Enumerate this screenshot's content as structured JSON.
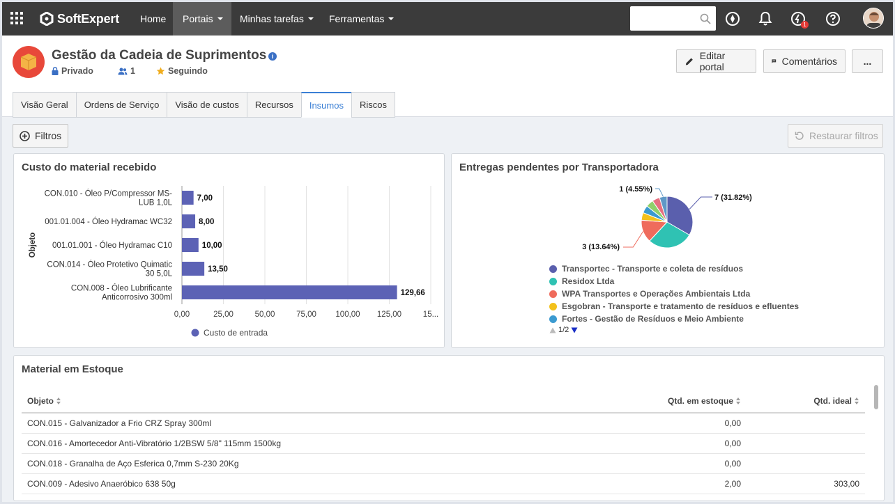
{
  "topbar": {
    "brand": "SoftExpert",
    "nav": [
      {
        "label": "Home"
      },
      {
        "label": "Portais"
      },
      {
        "label": "Minhas tarefas"
      },
      {
        "label": "Ferramentas"
      }
    ],
    "search_placeholder": "",
    "notification_badge": "1"
  },
  "portal": {
    "title": "Gestão da Cadeia de Suprimentos",
    "privacy": "Privado",
    "members": "1",
    "following": "Seguindo",
    "edit_label": "Editar portal",
    "comments_label": "Comentários",
    "more_label": "..."
  },
  "tabs": [
    {
      "label": "Visão Geral"
    },
    {
      "label": "Ordens de Serviço"
    },
    {
      "label": "Visão de custos"
    },
    {
      "label": "Recursos"
    },
    {
      "label": "Insumos"
    },
    {
      "label": "Riscos"
    }
  ],
  "toolbar": {
    "filters_label": "Filtros",
    "reset_label": "Restaurar filtros"
  },
  "panels": {
    "cost_title": "Custo do material recebido",
    "deliveries_title": "Entregas pendentes por Transportadora",
    "stock_title": "Material em Estoque"
  },
  "chart_data": [
    {
      "type": "bar",
      "orientation": "horizontal",
      "title": "Custo do material recebido",
      "ylabel": "Objeto",
      "categories": [
        [
          "CON.010 - Óleo P/Compressor MS-",
          "LUB 1,0L"
        ],
        [
          "001.01.004 - Óleo Hydramac WC32"
        ],
        [
          "001.01.001 - Óleo Hydramac C10"
        ],
        [
          "CON.014 - Óleo Protetivo Quimatic",
          "30 5,0L"
        ],
        [
          "CON.008 - Óleo Lubrificante",
          "Anticorrosivo 300ml"
        ]
      ],
      "values": [
        7.0,
        8.0,
        10.0,
        13.5,
        129.66
      ],
      "value_labels": [
        "7,00",
        "8,00",
        "10,00",
        "13,50",
        "129,66"
      ],
      "xlim": [
        0,
        150
      ],
      "x_ticks": [
        "0,00",
        "25,00",
        "50,00",
        "75,00",
        "100,00",
        "125,00",
        "15..."
      ],
      "series": [
        {
          "name": "Custo de entrada",
          "color": "#5c62b5"
        }
      ],
      "grid": true,
      "legend_position": "bottom"
    },
    {
      "type": "pie",
      "title": "Entregas pendentes por Transportadora",
      "labels": [
        "Transportec - Transporte e coleta de resíduos",
        "Residox Ltda",
        "WPA Transportes e Operações Ambientais Ltda",
        "Esgobran - Transporte e tratamento de resíduos e efluentes",
        "Fortes - Gestão de Resíduos e Meio Ambiente",
        "",
        "",
        ""
      ],
      "values": [
        7,
        6,
        3,
        1,
        1,
        1,
        1,
        1
      ],
      "colors": [
        "#5a5fad",
        "#2fc2b3",
        "#ef6b5c",
        "#f3c11c",
        "#3b9ad0",
        "#8fd06b",
        "#e76f7f",
        "#5f98c7"
      ],
      "data_labels": [
        {
          "index": 0,
          "text": "7 (31.82%)"
        },
        {
          "index": 2,
          "text": "3 (13.64%)"
        },
        {
          "index": 7,
          "text": "1 (4.55%)"
        }
      ],
      "legend_position": "bottom",
      "legend_page": "1/2"
    }
  ],
  "stock_table": {
    "columns": [
      "Objeto",
      "Qtd. em estoque",
      "Qtd. ideal"
    ],
    "rows": [
      [
        "CON.015 - Galvanizador a Frio CRZ Spray 300ml",
        "0,00",
        ""
      ],
      [
        "CON.016 - Amortecedor Anti-Vibratório 1/2BSW 5/8\" 115mm 1500kg",
        "0,00",
        ""
      ],
      [
        "CON.018 - Granalha de Aço Esferica 0,7mm S-230 20Kg",
        "0,00",
        ""
      ],
      [
        "CON.009 - Adesivo Anaeróbico 638 50g",
        "2,00",
        "303,00"
      ]
    ]
  }
}
